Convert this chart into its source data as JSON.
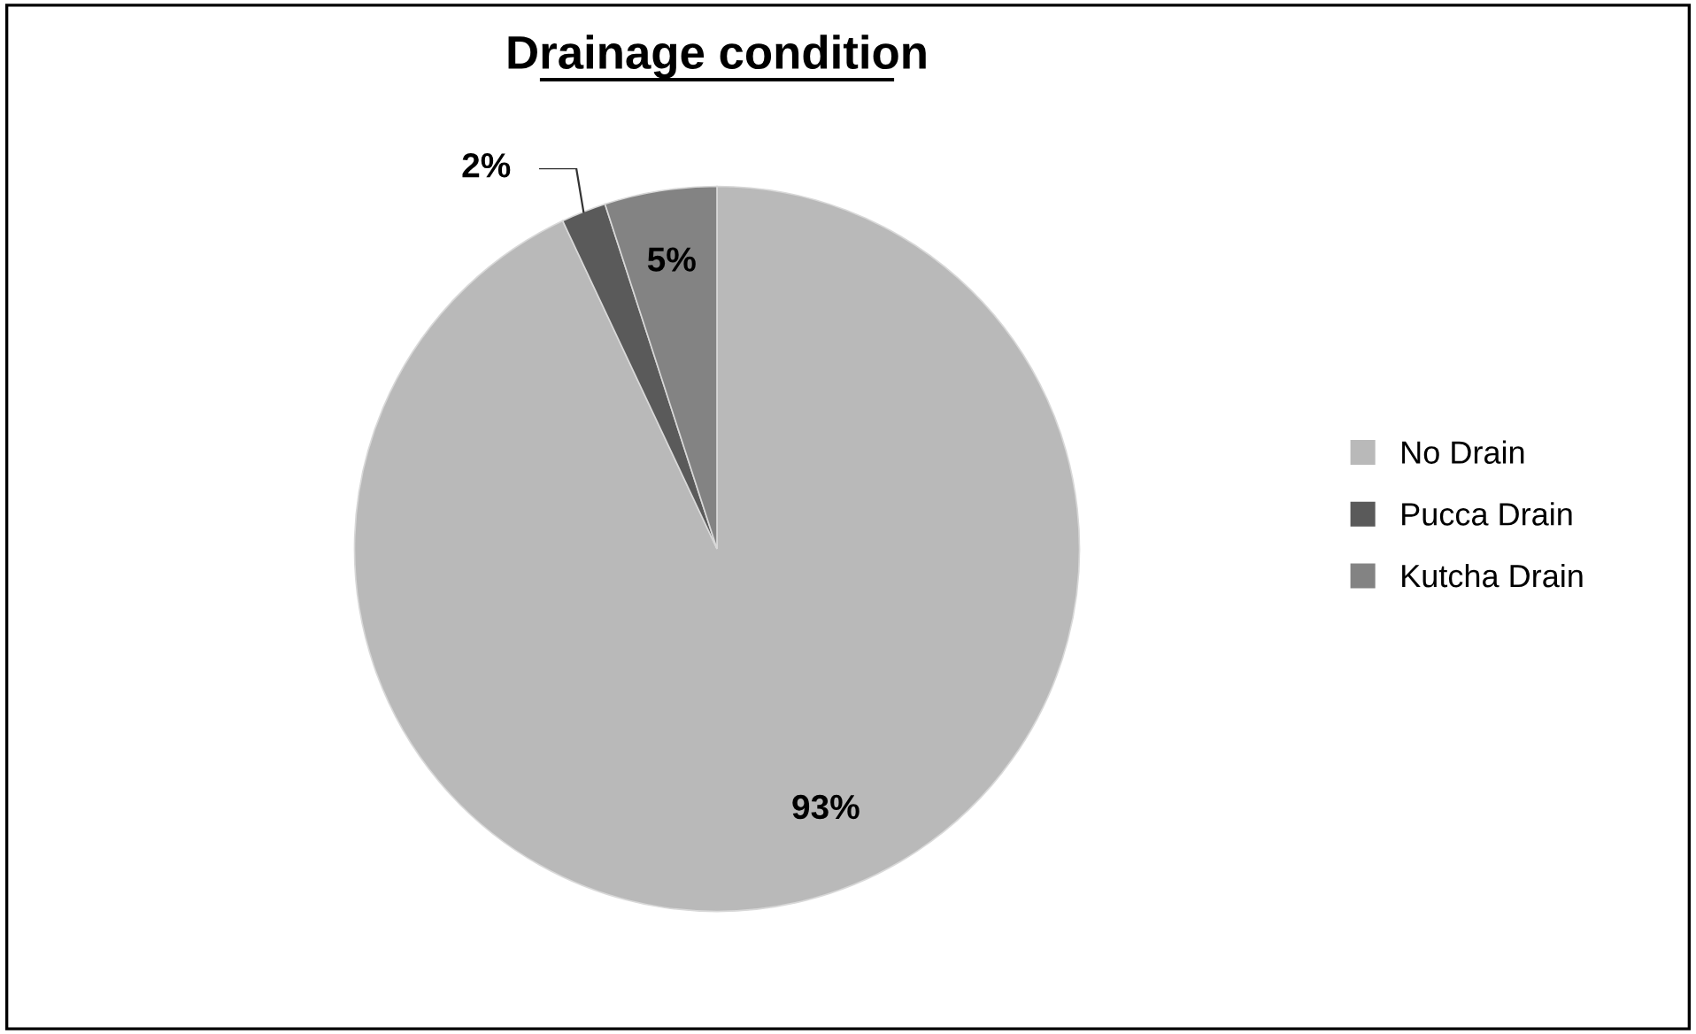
{
  "chart_data": {
    "type": "pie",
    "title": "Drainage condition",
    "categories": [
      "No Drain",
      "Pucca Drain",
      "Kutcha Drain"
    ],
    "values": [
      93,
      2,
      5
    ],
    "colors": [
      "#b9b9b9",
      "#5a5a5a",
      "#838383"
    ],
    "value_labels": [
      "93%",
      "2%",
      "5%"
    ],
    "legend": "right"
  }
}
